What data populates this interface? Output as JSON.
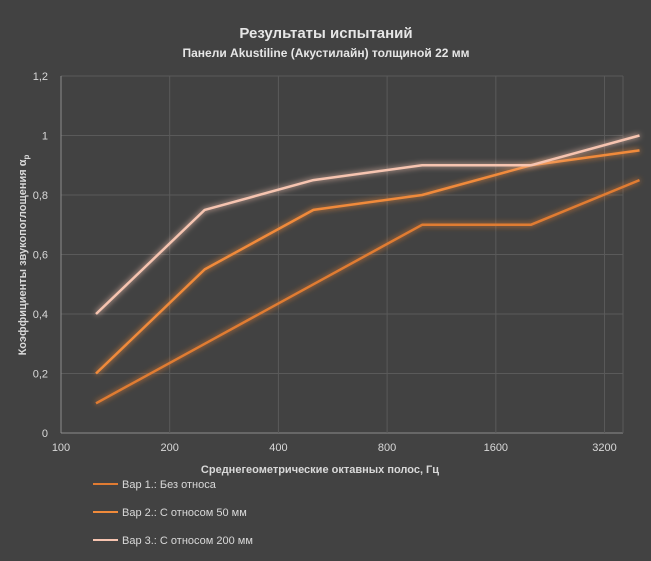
{
  "chart_data": {
    "type": "line",
    "title": "Результаты испытаний",
    "subtitle": "Панели Akustiline (Акустилайн) толщиной 22 мм",
    "xlabel": "Среднегеометрические октавных полос, Гц",
    "ylabel": "Коэффициенты звукопоглощения α",
    "ylabel_sub": "p",
    "x_scale": "log2",
    "x_ticks": [
      100,
      200,
      400,
      800,
      1600,
      3200
    ],
    "x_tick_labels": [
      "100",
      "200",
      "400",
      "800",
      "1600",
      "3200"
    ],
    "xlim": [
      100,
      3600
    ],
    "y_ticks": [
      0,
      0.2,
      0.4,
      0.6,
      0.8,
      1,
      1.2
    ],
    "y_tick_labels": [
      "0",
      "0,2",
      "0,4",
      "0,6",
      "0,8",
      "1",
      "1,2"
    ],
    "ylim": [
      0,
      1.2
    ],
    "grid": true,
    "legend_position": "bottom-left",
    "x": [
      125,
      250,
      500,
      1000,
      2000,
      4000
    ],
    "series": [
      {
        "name": "Вар 1.: Без относа",
        "color": "#e07b32",
        "values": [
          0.1,
          0.3,
          0.5,
          0.7,
          0.7,
          0.85
        ]
      },
      {
        "name": "Вар 2.: С относом 50 мм",
        "color": "#f08a3a",
        "values": [
          0.2,
          0.55,
          0.75,
          0.8,
          0.9,
          0.95
        ]
      },
      {
        "name": "Вар 3.: С относом 200 мм",
        "color": "#f6c4b0",
        "values": [
          0.4,
          0.75,
          0.85,
          0.9,
          0.9,
          1.0
        ]
      }
    ]
  }
}
